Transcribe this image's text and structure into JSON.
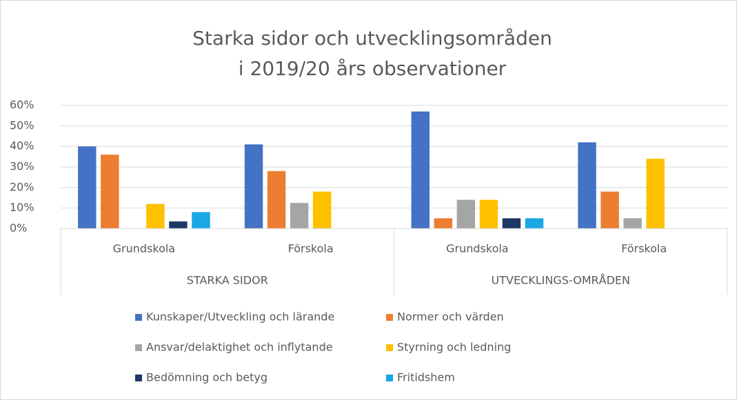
{
  "chart_data": {
    "type": "bar",
    "title": [
      "Starka sidor och utvecklingsområden",
      "i 2019/20 års observationer"
    ],
    "groups": [
      {
        "name": "STARKA SIDOR",
        "categories": [
          "Grundskola",
          "Förskola"
        ]
      },
      {
        "name": "UTVECKLINGS-OMRÅDEN",
        "categories": [
          "Grundskola",
          "Förskola"
        ]
      }
    ],
    "series": [
      {
        "name": "Kunskaper/Utveckling och lärande",
        "color": "#4472c4",
        "values": [
          40,
          41,
          57,
          42
        ]
      },
      {
        "name": "Normer och värden",
        "color": "#ed7d31",
        "values": [
          36,
          28,
          5,
          18
        ]
      },
      {
        "name": "Ansvar/delaktighet och inflytande",
        "color": "#a5a5a5",
        "values": [
          null,
          12.5,
          14,
          5
        ]
      },
      {
        "name": "Styrning och ledning",
        "color": "#ffc000",
        "values": [
          12,
          18,
          14,
          34
        ]
      },
      {
        "name": "Bedömning och betyg",
        "color": "#1f3864",
        "values": [
          3.5,
          null,
          5,
          null
        ]
      },
      {
        "name": "Fritidshem",
        "color": "#1aa7e6",
        "values": [
          8,
          null,
          5,
          null
        ]
      }
    ],
    "ylim": [
      0,
      60
    ],
    "yticks": [
      {
        "value": 0,
        "label": "0%"
      },
      {
        "value": 10,
        "label": "10%"
      },
      {
        "value": 20,
        "label": "20%"
      },
      {
        "value": 30,
        "label": "30%"
      },
      {
        "value": 40,
        "label": "40%"
      },
      {
        "value": 50,
        "label": "50%"
      },
      {
        "value": 60,
        "label": "60%"
      }
    ],
    "grid": true
  }
}
